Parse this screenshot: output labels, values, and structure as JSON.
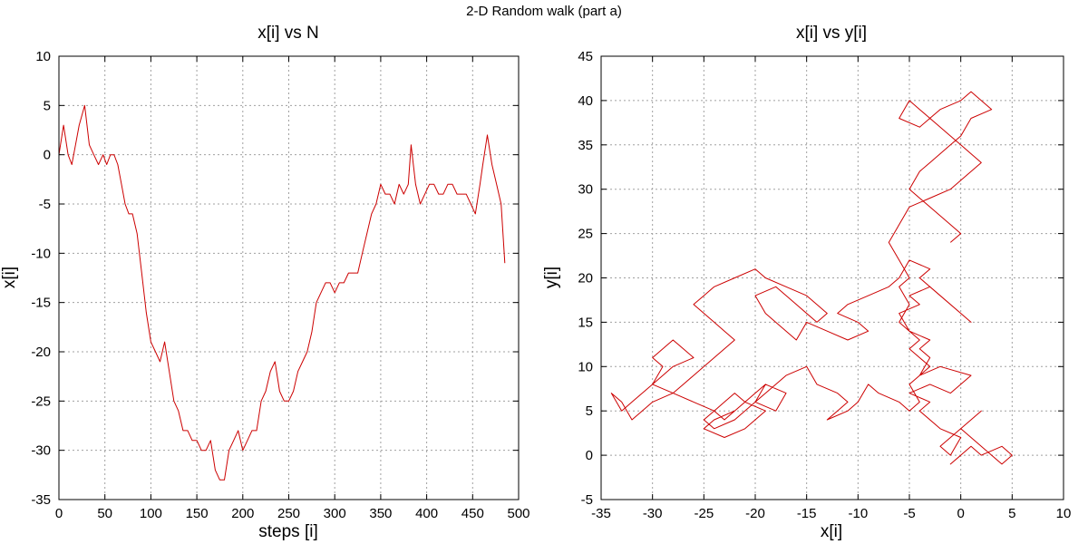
{
  "figure": {
    "title": "2-D Random walk (part a)"
  },
  "colors": {
    "series": "#cc0000",
    "grid": "#a0a0a0",
    "axis": "#000000"
  },
  "chart_data": [
    {
      "type": "line",
      "title": "x[i] vs N",
      "xlabel": "steps [i]",
      "ylabel": "x[i]",
      "xlim": [
        0,
        500
      ],
      "ylim": [
        -35,
        10
      ],
      "xticks": [
        0,
        50,
        100,
        150,
        200,
        250,
        300,
        350,
        400,
        450,
        500
      ],
      "yticks": [
        10,
        5,
        0,
        -5,
        -10,
        -15,
        -20,
        -25,
        -30,
        -35
      ],
      "grid": true,
      "series": [
        {
          "x": [
            0,
            5,
            10,
            14,
            18,
            22,
            28,
            33,
            38,
            43,
            48,
            52,
            56,
            60,
            64,
            68,
            72,
            76,
            80,
            85,
            90,
            95,
            100,
            105,
            110,
            115,
            120,
            125,
            130,
            135,
            140,
            145,
            150,
            155,
            160,
            165,
            170,
            175,
            180,
            185,
            190,
            195,
            200,
            205,
            210,
            215,
            220,
            225,
            230,
            235,
            240,
            245,
            250,
            255,
            260,
            265,
            270,
            275,
            280,
            285,
            290,
            295,
            300,
            305,
            310,
            315,
            320,
            325,
            330,
            335,
            340,
            345,
            350,
            355,
            360,
            365,
            370,
            375,
            380,
            383,
            388,
            393,
            398,
            403,
            408,
            413,
            418,
            423,
            428,
            433,
            438,
            443,
            448,
            453,
            458,
            461,
            466,
            471,
            476,
            481,
            485
          ],
          "y": [
            0,
            3,
            0,
            -1,
            1,
            3,
            5,
            1,
            0,
            -1,
            0,
            -1,
            0,
            0,
            -1,
            -3,
            -5,
            -6,
            -6,
            -8,
            -12,
            -16,
            -19,
            -20,
            -21,
            -19,
            -22,
            -25,
            -26,
            -28,
            -28,
            -29,
            -29,
            -30,
            -30,
            -29,
            -32,
            -33,
            -33,
            -30,
            -29,
            -28,
            -30,
            -29,
            -28,
            -28,
            -25,
            -24,
            -22,
            -21,
            -24,
            -25,
            -25,
            -24,
            -22,
            -21,
            -20,
            -18,
            -15,
            -14,
            -13,
            -13,
            -14,
            -13,
            -13,
            -12,
            -12,
            -12,
            -10,
            -8,
            -6,
            -5,
            -3,
            -4,
            -4,
            -5,
            -3,
            -4,
            -3,
            1,
            -3,
            -5,
            -4,
            -3,
            -3,
            -4,
            -4,
            -3,
            -3,
            -4,
            -4,
            -4,
            -5,
            -6,
            -3,
            -1,
            2,
            -1,
            -3,
            -5,
            -11
          ]
        }
      ]
    },
    {
      "type": "line",
      "title": "x[i] vs y[i]",
      "xlabel": "x[i]",
      "ylabel": "y[i]",
      "xlim": [
        -35,
        10
      ],
      "ylim": [
        -5,
        45
      ],
      "xticks": [
        -35,
        -30,
        -25,
        -20,
        -15,
        -10,
        -5,
        0,
        5,
        10
      ],
      "yticks": [
        45,
        40,
        35,
        30,
        25,
        20,
        15,
        10,
        5,
        0,
        -5
      ],
      "grid": true,
      "series": [
        {
          "x": [
            0,
            -1,
            1,
            2,
            4,
            5,
            4,
            3,
            1,
            0,
            1,
            2,
            0,
            -2,
            -1,
            0,
            -2,
            -4,
            -3,
            -5,
            -3,
            -1,
            1,
            -2,
            -4,
            -3,
            -4,
            -3,
            -5,
            -6,
            -4,
            -5,
            -3,
            -1,
            1,
            0,
            -2,
            -4,
            -3,
            -5,
            -6,
            -7,
            -9,
            -11,
            -12,
            -10,
            -9,
            -11,
            -13,
            -15,
            -16,
            -17,
            -19,
            -20,
            -18,
            -16,
            -14,
            -13,
            -15,
            -17,
            -19,
            -20,
            -22,
            -24,
            -25,
            -26,
            -24,
            -23,
            -22,
            -24,
            -26,
            -27,
            -28,
            -30,
            -31,
            -32,
            -33,
            -34,
            -33,
            -32,
            -30,
            -29,
            -28,
            -26,
            -27,
            -28,
            -29,
            -30,
            -29,
            -30,
            -28,
            -26,
            -24,
            -23,
            -21,
            -20,
            -19,
            -20,
            -18,
            -17,
            -19,
            -21,
            -22,
            -24,
            -25,
            -23,
            -21,
            -20,
            -19,
            -21,
            -22,
            -23,
            -24,
            -25,
            -24,
            -22,
            -20,
            -18,
            -17,
            -15,
            -14,
            -12,
            -11,
            -12,
            -13,
            -11,
            -10,
            -9,
            -8,
            -6,
            -5,
            -4,
            -5,
            -4,
            -3,
            -4,
            -5,
            -4,
            -5,
            -6,
            -5,
            -6,
            -5,
            -6,
            -7,
            -6,
            -5,
            -3,
            -1,
            0,
            1,
            2,
            1,
            0,
            -1,
            -2,
            -3,
            -4,
            -5,
            -6,
            -4,
            -2,
            0,
            1,
            2,
            3,
            1,
            0,
            -1,
            -3,
            -4,
            -5,
            -4,
            -3,
            -2,
            -1,
            0,
            -1
          ],
          "y": [
            0,
            -1,
            1,
            0,
            1,
            0,
            -1,
            0,
            2,
            3,
            4,
            5,
            3,
            1,
            0,
            2,
            3,
            5,
            6,
            7,
            8,
            7,
            9,
            10,
            9,
            11,
            12,
            13,
            14,
            16,
            17,
            18,
            19,
            17,
            15,
            16,
            18,
            20,
            21,
            22,
            20,
            19,
            18,
            17,
            16,
            15,
            14,
            13,
            14,
            15,
            13,
            14,
            16,
            18,
            19,
            17,
            15,
            16,
            18,
            19,
            20,
            21,
            20,
            19,
            18,
            17,
            15,
            14,
            13,
            11,
            9,
            8,
            7,
            6,
            5,
            4,
            6,
            7,
            5,
            6,
            8,
            9,
            10,
            11,
            12,
            13,
            12,
            11,
            10,
            8,
            7,
            6,
            5,
            4,
            6,
            7,
            8,
            6,
            5,
            7,
            8,
            6,
            5,
            4,
            3,
            2,
            3,
            4,
            5,
            6,
            7,
            6,
            5,
            4,
            3,
            4,
            6,
            8,
            9,
            10,
            8,
            7,
            6,
            5,
            4,
            5,
            6,
            8,
            7,
            6,
            5,
            6,
            8,
            9,
            10,
            11,
            12,
            13,
            14,
            15,
            17,
            19,
            20,
            22,
            24,
            26,
            28,
            29,
            30,
            31,
            32,
            33,
            34,
            35,
            36,
            37,
            38,
            39,
            40,
            38,
            37,
            39,
            40,
            41,
            40,
            39,
            38,
            36,
            35,
            33,
            32,
            30,
            29,
            28,
            27,
            26,
            25,
            24
          ]
        }
      ]
    }
  ]
}
